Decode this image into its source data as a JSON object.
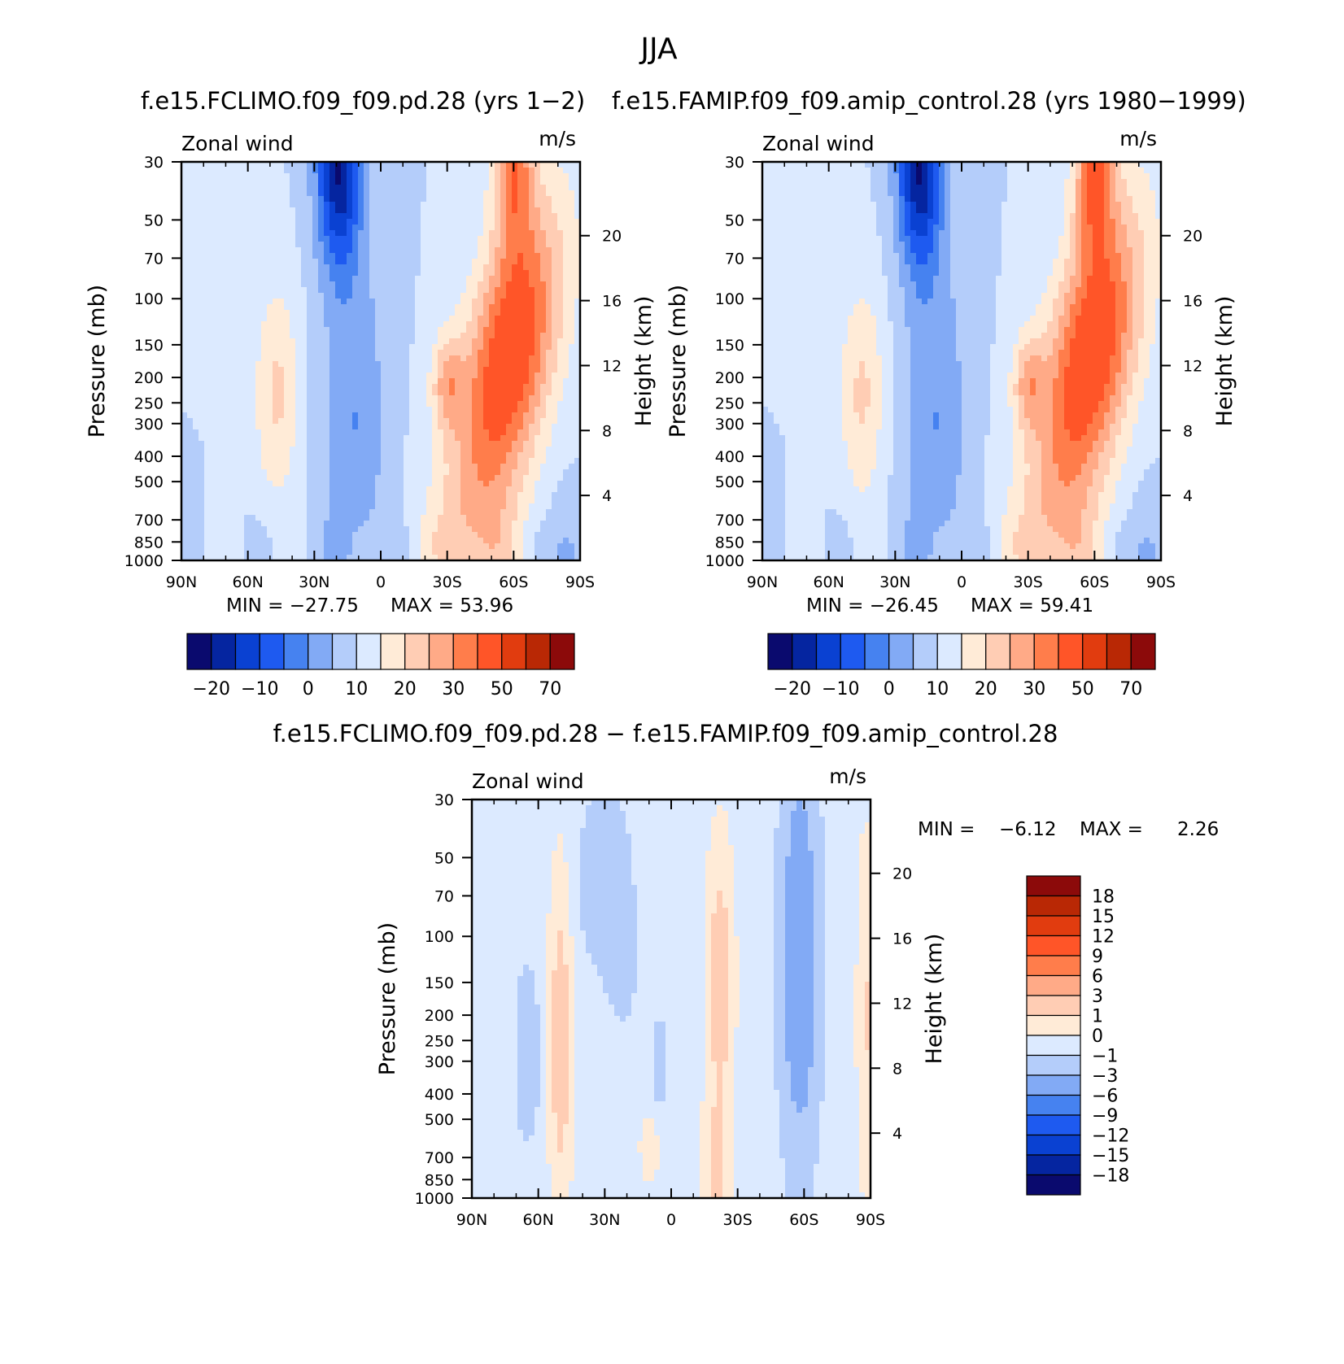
{
  "figure": {
    "title": "JJA"
  },
  "colors": {
    "full": [
      "#0a0a6e",
      "#0525a0",
      "#0a41d2",
      "#1e5af0",
      "#4682f0",
      "#82aaf5",
      "#b4cdfa",
      "#dceaff",
      "#ffebd7",
      "#ffcdb4",
      "#ffaa87",
      "#ff7d4b",
      "#ff5528",
      "#e13c0f",
      "#b92805",
      "#8c0a0a"
    ],
    "diff": [
      "#0a0a6e",
      "#0525a0",
      "#0a41d2",
      "#1e5af0",
      "#4682f0",
      "#82aaf5",
      "#b4cdfa",
      "#dceaff",
      "#ffebd7",
      "#ffcdb4",
      "#ffaa87",
      "#ff7d4b",
      "#ff5528",
      "#e13c0f",
      "#b92805",
      "#8c0a0a"
    ]
  },
  "chart_data": [
    {
      "type": "heatmap",
      "title": "f.e15.FCLIMO.f09_f09.pd.28 (yrs 1−2)",
      "left_label": "Zonal wind",
      "right_label": "m/s",
      "ylabel": "Pressure (mb)",
      "y2label": "Height (km)",
      "xticks": [
        "90N",
        "60N",
        "30N",
        "0",
        "30S",
        "60S",
        "90S"
      ],
      "yticks": [
        "30",
        "50",
        "70",
        "100",
        "150",
        "200",
        "250",
        "300",
        "400",
        "500",
        "700",
        "850",
        "1000"
      ],
      "y2ticks": [
        "20",
        "16",
        "12",
        "8",
        "4"
      ],
      "ylim": [
        1000,
        30
      ],
      "min_label": "MIN = −27.75",
      "max_label": "MAX =  53.96",
      "min": -27.75,
      "max": 53.96,
      "colorbar_labels": [
        "−20",
        "−10",
        "0",
        "10",
        "20",
        "30",
        "50",
        "70"
      ],
      "features": [
        {
          "lat": 20,
          "p": 30,
          "value": -27
        },
        {
          "lat": 48,
          "p": 200,
          "value": 18
        },
        {
          "lat": -28,
          "p": 200,
          "value": 50
        },
        {
          "lat": -60,
          "p": 30,
          "value": 54
        },
        {
          "lat": -85,
          "p": 1000,
          "value": -10
        }
      ]
    },
    {
      "type": "heatmap",
      "title": "f.e15.FAMIP.f09_f09.amip_control.28 (yrs 1980−1999)",
      "left_label": "Zonal wind",
      "right_label": "m/s",
      "ylabel": "Pressure (mb)",
      "y2label": "Height (km)",
      "xticks": [
        "90N",
        "60N",
        "30N",
        "0",
        "30S",
        "60S",
        "90S"
      ],
      "yticks": [
        "30",
        "50",
        "70",
        "100",
        "150",
        "200",
        "250",
        "300",
        "400",
        "500",
        "700",
        "850",
        "1000"
      ],
      "y2ticks": [
        "20",
        "16",
        "12",
        "8",
        "4"
      ],
      "ylim": [
        1000,
        30
      ],
      "min_label": "MIN = −26.45",
      "max_label": "MAX =  59.41",
      "min": -26.45,
      "max": 59.41,
      "colorbar_labels": [
        "−20",
        "−10",
        "0",
        "10",
        "20",
        "30",
        "50",
        "70"
      ],
      "features": [
        {
          "lat": 20,
          "p": 30,
          "value": -26
        },
        {
          "lat": 44,
          "p": 200,
          "value": 18
        },
        {
          "lat": -30,
          "p": 200,
          "value": 48
        },
        {
          "lat": -58,
          "p": 30,
          "value": 59
        },
        {
          "lat": -85,
          "p": 1000,
          "value": -10
        }
      ]
    },
    {
      "type": "heatmap",
      "title": "f.e15.FCLIMO.f09_f09.pd.28 − f.e15.FAMIP.f09_f09.amip_control.28",
      "left_label": "Zonal wind",
      "right_label": "m/s",
      "ylabel": "Pressure (mb)",
      "y2label": "Height (km)",
      "xticks": [
        "90N",
        "60N",
        "30N",
        "0",
        "30S",
        "60S",
        "90S"
      ],
      "yticks": [
        "30",
        "50",
        "70",
        "100",
        "150",
        "200",
        "250",
        "300",
        "400",
        "500",
        "700",
        "850",
        "1000"
      ],
      "y2ticks": [
        "20",
        "16",
        "12",
        "8",
        "4"
      ],
      "ylim": [
        1000,
        30
      ],
      "min_label": "MIN =",
      "min_value": "−6.12",
      "max_label": "MAX =",
      "max_value": "2.26",
      "min": -6.12,
      "max": 2.26,
      "colorbar_labels": [
        "18",
        "15",
        "12",
        "9",
        "6",
        "3",
        "1",
        "0",
        "−1",
        "−3",
        "−6",
        "−9",
        "−12",
        "−15",
        "−18"
      ],
      "features": [
        {
          "lat": -60,
          "p": 100,
          "value": -6
        },
        {
          "lat": 50,
          "p": 250,
          "value": 2
        },
        {
          "lat": -22,
          "p": 150,
          "value": 2
        },
        {
          "lat": 30,
          "p": 70,
          "value": -3
        }
      ]
    }
  ]
}
